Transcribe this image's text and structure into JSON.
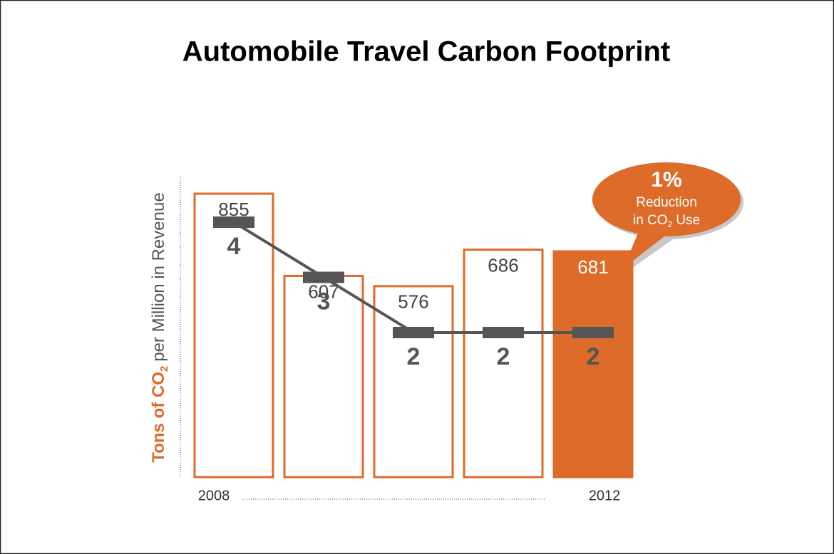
{
  "chart_data": {
    "type": "bar",
    "title": "Automobile Travel Carbon Footprint",
    "y_label": {
      "bold": "Tons of CO",
      "sub": "2",
      "rest": "per Million in Revenue"
    },
    "categories": [
      "2008",
      null,
      null,
      null,
      "2012"
    ],
    "values": [
      855,
      607,
      576,
      686,
      681
    ],
    "color": "#dd6b2a",
    "fills": [
      "none",
      "none",
      "none",
      "none",
      "#dd6b2a"
    ],
    "line": {
      "values": [
        4,
        3,
        2,
        2,
        2
      ],
      "color": "#555555"
    },
    "annotation": {
      "headline": "1%",
      "line1": "Reduction",
      "line2": "in CO",
      "line2_sub": "2",
      "line2_end": "Use"
    }
  }
}
